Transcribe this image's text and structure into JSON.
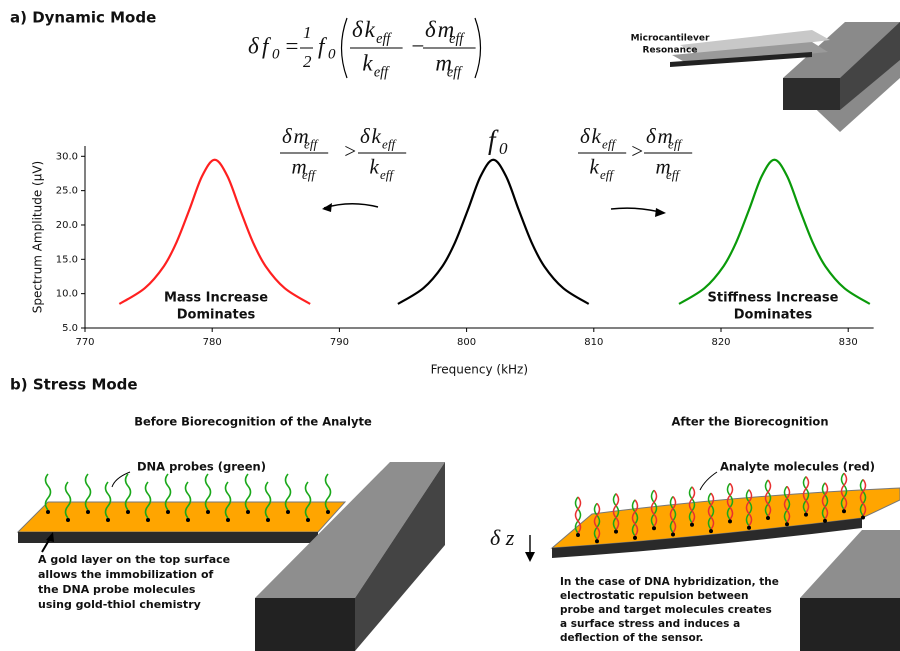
{
  "panel_a": {
    "label": "a) Dynamic Mode",
    "equation": {
      "delta": "δ",
      "f": "f",
      "zero": "0",
      "eq": "=",
      "one": "1",
      "two": "2",
      "k": "k",
      "m": "m",
      "eff": "eff",
      "minus": "−",
      "gt": ">"
    },
    "cantilever_label": [
      "Microcantilever",
      "Resonance"
    ],
    "mass_note": [
      "Mass Increase",
      "Dominates"
    ],
    "stiffness_note": [
      "Stiffness Increase",
      "Dominates"
    ]
  },
  "chart_data": {
    "type": "line",
    "x_label": "Frequency (kHz)",
    "y_label": "Spectrum Amplitude (μV)",
    "xlim": [
      770,
      832
    ],
    "ylim": [
      5,
      31.5
    ],
    "xticks": [
      770,
      780,
      790,
      800,
      810,
      820,
      830
    ],
    "yticks": [
      {
        "value": 5,
        "label": "5.0"
      },
      {
        "value": 10,
        "label": "10.0"
      },
      {
        "value": 15,
        "label": "15.0"
      },
      {
        "value": 20,
        "label": "20.0"
      },
      {
        "value": 25,
        "label": "25.0"
      },
      {
        "value": 30,
        "label": "30.0"
      }
    ],
    "series": [
      {
        "color": "#ff2020",
        "x": [
          772.7,
          774.7,
          776.2,
          777.2,
          778.2,
          779.2,
          780.2,
          781.2,
          782.2,
          783.2,
          784.2,
          785.7,
          787.7
        ],
        "values": [
          8.5,
          10.8,
          14.0,
          17.5,
          22.2,
          27.1,
          29.5,
          27.1,
          22.2,
          17.5,
          14.0,
          10.8,
          8.5
        ]
      },
      {
        "color": "#000000",
        "x": [
          794.6,
          796.6,
          798.1,
          799.1,
          800.1,
          801.1,
          802.1,
          803.1,
          804.1,
          805.1,
          806.1,
          807.6,
          809.6
        ],
        "values": [
          8.5,
          10.8,
          14.0,
          17.5,
          22.2,
          27.1,
          29.5,
          27.1,
          22.2,
          17.5,
          14.0,
          10.8,
          8.5
        ]
      },
      {
        "color": "#0a9a0a",
        "x": [
          816.7,
          818.7,
          820.2,
          821.2,
          822.2,
          823.2,
          824.2,
          825.2,
          826.2,
          827.2,
          828.2,
          829.7,
          831.7
        ],
        "values": [
          8.5,
          10.8,
          14.0,
          17.5,
          22.2,
          27.1,
          29.5,
          27.1,
          22.2,
          17.5,
          14.0,
          10.8,
          8.5
        ]
      }
    ]
  },
  "panel_b": {
    "label": "b) Stress Mode",
    "before_title": "Before Biorecognition of the Analyte",
    "after_title": "After the Biorecognition",
    "dna_probes": "DNA probes (green)",
    "analyte": "Analyte molecules (red)",
    "gold_note": [
      "A gold layer on the top surface",
      "allows the immobilization of",
      "the DNA probe molecules",
      "using gold-thiol chemistry"
    ],
    "delta_z": "δ z",
    "hybrid_note": [
      "In the case of DNA hybridization, the",
      "electrostatic repulsion between",
      "probe and target molecules creates",
      "a surface stress and induces a",
      "deflection of the sensor."
    ]
  }
}
